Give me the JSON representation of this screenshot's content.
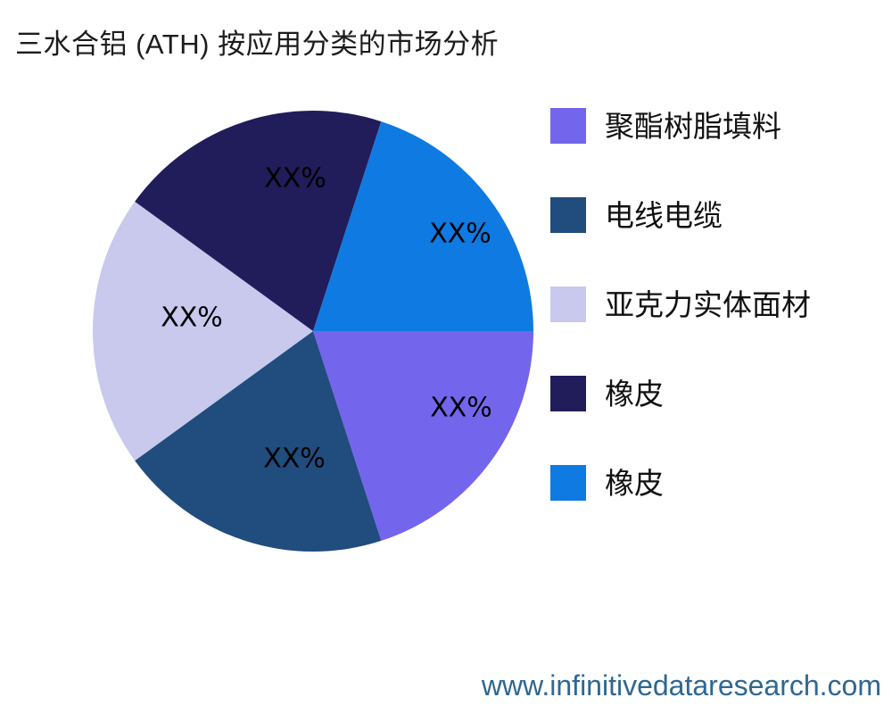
{
  "title": "三水合铝 (ATH) 按应用分类的市场分析",
  "watermark": {
    "text": "www.infinitivedataresearch.com",
    "color": "#2E6792"
  },
  "chart_data": {
    "type": "pie",
    "title": "三水合铝 (ATH) 按应用分类的市场分析",
    "start_angle_deg": 0,
    "direction": "clockwise",
    "legend_position": "right",
    "value_label_format": "placeholder-percent",
    "slices": [
      {
        "label": "聚酯树脂填料",
        "value_label": "XX%",
        "value": 20,
        "color": "#7365EC"
      },
      {
        "label": "电线电缆",
        "value_label": "XX%",
        "value": 20,
        "color": "#204C7E"
      },
      {
        "label": "亚克力实体面材",
        "value_label": "XX%",
        "value": 20,
        "color": "#C8C9ED"
      },
      {
        "label": "橡皮",
        "value_label": "XX%",
        "value": 20,
        "color": "#211C5A"
      },
      {
        "label": "橡皮",
        "value_label": "XX%",
        "value": 20,
        "color": "#0F7AE1"
      }
    ]
  }
}
